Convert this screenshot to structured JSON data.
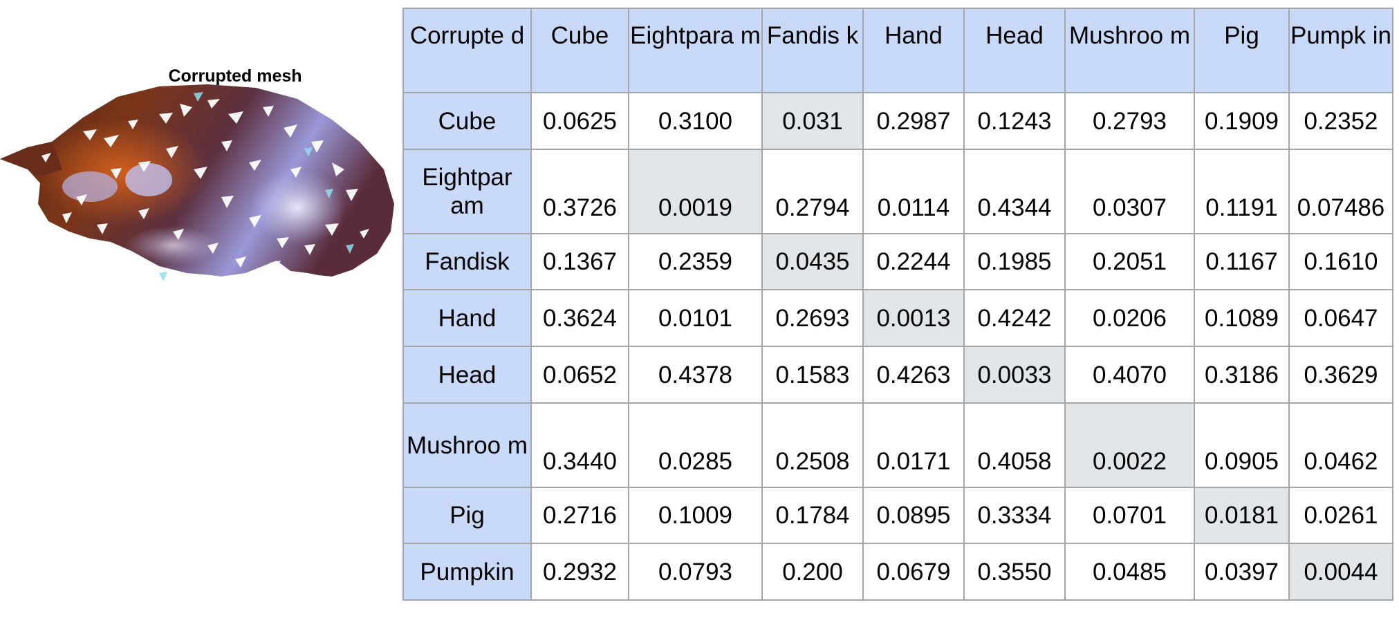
{
  "figure": {
    "title": "Corrupted mesh",
    "colors": {
      "body": "#6a2c1a",
      "highlight": "#e0661e",
      "sheen": "#d9daf6",
      "specular": "#8fdcec"
    }
  },
  "table": {
    "corner": "Corrupte d",
    "columns": [
      "Cube",
      "Eightpara m",
      "Fandis k",
      "Hand",
      "Head",
      "Mushroo m",
      "Pig",
      "Pumpk in"
    ],
    "rows": [
      {
        "label": "Cube",
        "values": [
          "0.0625",
          "0.3100",
          "0.031",
          "0.2987",
          "0.1243",
          "0.2793",
          "0.1909",
          "0.2352"
        ]
      },
      {
        "label": "Eightpar am",
        "values": [
          "0.3726",
          "0.0019",
          "0.2794",
          "0.0114",
          "0.4344",
          "0.0307",
          "0.1191",
          "0.07486"
        ]
      },
      {
        "label": "Fandisk",
        "values": [
          "0.1367",
          "0.2359",
          "0.0435",
          "0.2244",
          "0.1985",
          "0.2051",
          "0.1167",
          "0.1610"
        ]
      },
      {
        "label": "Hand",
        "values": [
          "0.3624",
          "0.0101",
          "0.2693",
          "0.0013",
          "0.4242",
          "0.0206",
          "0.1089",
          "0.0647"
        ]
      },
      {
        "label": "Head",
        "values": [
          "0.0652",
          "0.4378",
          "0.1583",
          "0.4263",
          "0.0033",
          "0.4070",
          "0.3186",
          "0.3629"
        ]
      },
      {
        "label": "Mushroo m",
        "values": [
          "0.3440",
          "0.0285",
          "0.2508",
          "0.0171",
          "0.4058",
          "0.0022",
          "0.0905",
          "0.0462"
        ]
      },
      {
        "label": "Pig",
        "values": [
          "0.2716",
          "0.1009",
          "0.1784",
          "0.0895",
          "0.3334",
          "0.0701",
          "0.0181",
          "0.0261"
        ]
      },
      {
        "label": "Pumpkin",
        "values": [
          "0.2932",
          "0.0793",
          "0.200",
          "0.0679",
          "0.3550",
          "0.0485",
          "0.0397",
          "0.0044"
        ]
      }
    ],
    "colors": {
      "header_bg": "#c9daf8",
      "highlight_bg": "#e3e6e9",
      "highlight_text": "#3c78d8",
      "alert_text": "#ff0000",
      "border": "#a6a6a6"
    }
  }
}
